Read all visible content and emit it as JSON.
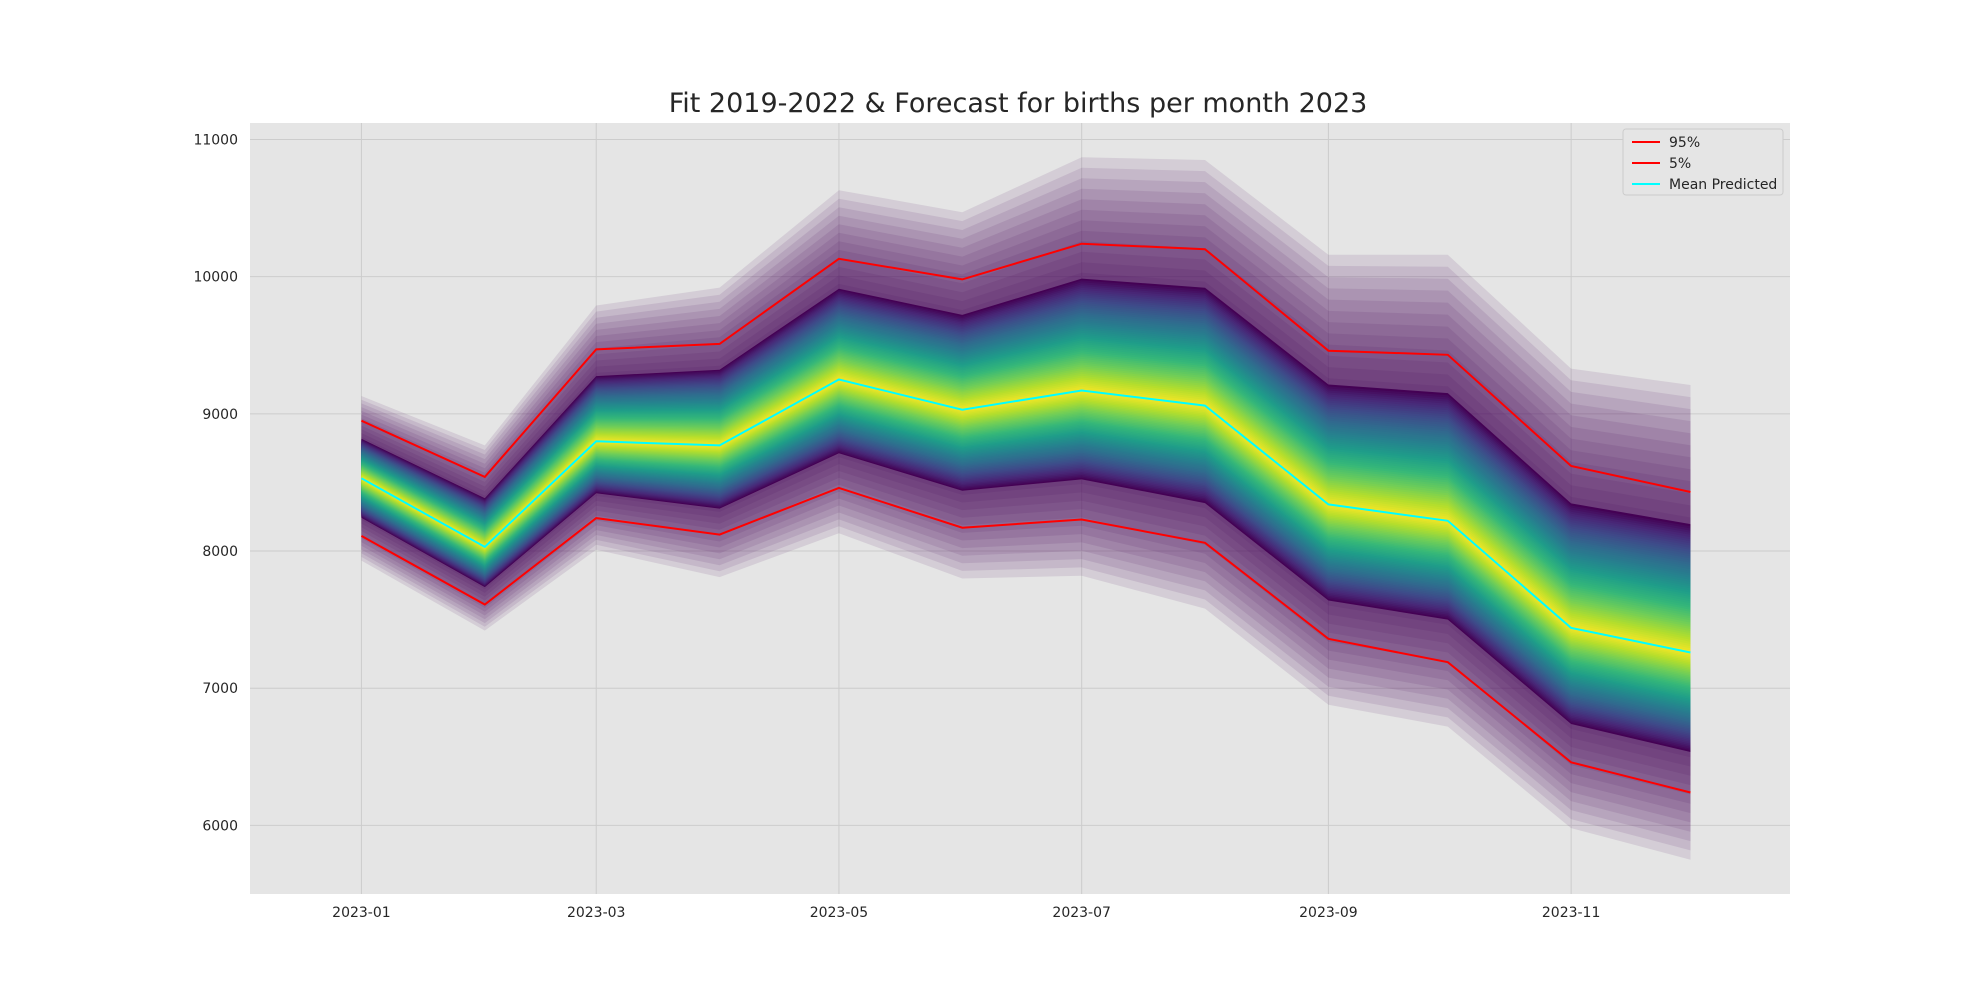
{
  "chart_data": {
    "type": "area",
    "title": "Fit 2019-2022 & Forecast for births per month 2023",
    "xlabel": "",
    "ylabel": "",
    "x": [
      "2023-01",
      "2023-02",
      "2023-03",
      "2023-04",
      "2023-05",
      "2023-06",
      "2023-07",
      "2023-08",
      "2023-09",
      "2023-10",
      "2023-11",
      "2023-12"
    ],
    "x_tick_labels": [
      "2023-01",
      "2023-03",
      "2023-05",
      "2023-07",
      "2023-09",
      "2023-11"
    ],
    "y_tick_labels": [
      "6000",
      "7000",
      "8000",
      "9000",
      "10000",
      "11000"
    ],
    "ylim": [
      5500,
      11120
    ],
    "grid": true,
    "legend_position": "top-right",
    "series": [
      {
        "name": "95%",
        "color": "#ff0000",
        "values": [
          8950,
          8540,
          9470,
          9510,
          10130,
          9980,
          10240,
          10200,
          9460,
          9430,
          8620,
          8430
        ]
      },
      {
        "name": "5%",
        "color": "#ff0000",
        "values": [
          8110,
          7610,
          8240,
          8120,
          8460,
          8170,
          8230,
          8060,
          7360,
          7190,
          6460,
          6240
        ]
      },
      {
        "name": "Mean Predicted",
        "color": "#00ffff",
        "values": [
          8530,
          8030,
          8800,
          8770,
          9250,
          9030,
          9170,
          9060,
          8340,
          8220,
          7440,
          7260
        ]
      }
    ],
    "envelope": {
      "upper_outer": [
        9130,
        8770,
        9790,
        9920,
        10630,
        10470,
        10870,
        10850,
        10160,
        10160,
        9330,
        9210
      ],
      "lower_outer": [
        7930,
        7420,
        8010,
        7810,
        8130,
        7800,
        7820,
        7580,
        6880,
        6720,
        5980,
        5750
      ]
    },
    "colors": {
      "background": "#e5e5e5",
      "grid": "#cccccc",
      "band": "#440154"
    }
  }
}
